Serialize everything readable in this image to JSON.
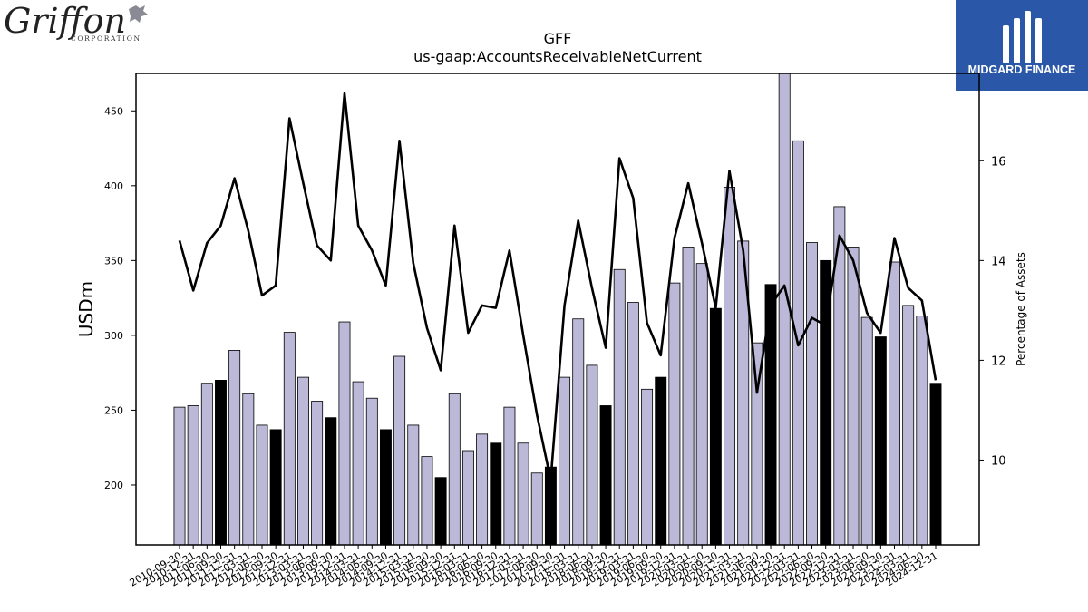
{
  "branding": {
    "left_logo_text": "Griffon",
    "left_logo_subtext": "CORPORATION",
    "right_logo_text": "MIDGARD FINANCE"
  },
  "colors": {
    "bar_normal": "#bcb8d8",
    "bar_highlight": "#000000",
    "line": "#000000",
    "brand_blue": "#2b57a8"
  },
  "chart_data": {
    "type": "bar",
    "title": "GFF",
    "subtitle": "us-gaap:AccountsReceivableNetCurrent",
    "ylabel": "USDm",
    "y2label": "Percentage of Assets",
    "ylim": [
      160,
      475
    ],
    "y2lim": [
      8.3,
      17.75
    ],
    "yticks": [
      200,
      250,
      300,
      350,
      400,
      450
    ],
    "y2ticks": [
      10,
      12,
      14,
      16
    ],
    "categories": [
      "2010-09-30",
      "2010-12-31",
      "2011-06-30",
      "2011-09-30",
      "2011-12-31",
      "2012-03-31",
      "2012-06-30",
      "2012-09-30",
      "2012-12-31",
      "2013-03-31",
      "2013-06-30",
      "2013-09-30",
      "2013-12-31",
      "2014-03-31",
      "2014-06-30",
      "2014-09-30",
      "2014-12-31",
      "2015-03-31",
      "2015-06-30",
      "2015-09-30",
      "2015-12-31",
      "2016-03-31",
      "2016-06-30",
      "2016-09-30",
      "2016-12-31",
      "2017-03-31",
      "2017-06-30",
      "2017-09-30",
      "2017-12-31",
      "2018-03-31",
      "2018-06-30",
      "2018-09-30",
      "2018-12-31",
      "2019-03-31",
      "2019-06-30",
      "2019-09-30",
      "2019-12-31",
      "2020-03-31",
      "2020-06-30",
      "2020-09-30",
      "2020-12-31",
      "2021-03-31",
      "2021-06-30",
      "2021-09-30",
      "2021-12-31",
      "2022-03-31",
      "2022-06-30",
      "2022-09-30",
      "2022-12-31",
      "2023-03-31",
      "2023-06-30",
      "2023-09-30",
      "2023-12-31",
      "2024-03-31",
      "2024-06-30",
      "2024-12-31"
    ],
    "series": [
      {
        "type": "bar",
        "values": [
          252,
          253,
          268,
          270,
          290,
          261,
          240,
          237,
          302,
          272,
          256,
          245,
          309,
          269,
          258,
          237,
          286,
          240,
          219,
          205,
          261,
          223,
          234,
          228,
          252,
          228,
          208,
          212,
          272,
          311,
          280,
          253,
          344,
          322,
          264,
          272,
          335,
          359,
          348,
          318,
          399,
          363,
          295,
          334,
          478,
          430,
          362,
          350,
          386,
          359,
          312,
          299,
          349,
          320,
          313,
          268
        ],
        "highlight": [
          false,
          false,
          false,
          true,
          false,
          false,
          false,
          true,
          false,
          false,
          false,
          true,
          false,
          false,
          false,
          true,
          false,
          false,
          false,
          true,
          false,
          false,
          false,
          true,
          false,
          false,
          false,
          true,
          false,
          false,
          false,
          true,
          false,
          false,
          false,
          true,
          false,
          false,
          false,
          true,
          false,
          false,
          false,
          true,
          false,
          false,
          false,
          true,
          false,
          false,
          false,
          true,
          false,
          false,
          false,
          true
        ]
      },
      {
        "type": "line",
        "axis": "right",
        "values": [
          14.4,
          13.4,
          14.35,
          14.7,
          15.65,
          14.6,
          13.3,
          13.5,
          16.85,
          15.55,
          14.3,
          14.0,
          17.35,
          14.7,
          14.2,
          13.5,
          16.4,
          13.95,
          12.65,
          11.8,
          14.7,
          12.55,
          13.1,
          13.05,
          14.2,
          12.5,
          10.9,
          9.6,
          13.1,
          14.8,
          13.45,
          12.25,
          16.05,
          15.25,
          12.75,
          12.1,
          14.45,
          15.55,
          14.35,
          13.05,
          15.8,
          14.2,
          11.35,
          13.1,
          13.5,
          12.3,
          12.85,
          12.7,
          14.5,
          14.0,
          12.95,
          12.55,
          14.45,
          13.45,
          13.2,
          11.6
        ]
      }
    ]
  }
}
